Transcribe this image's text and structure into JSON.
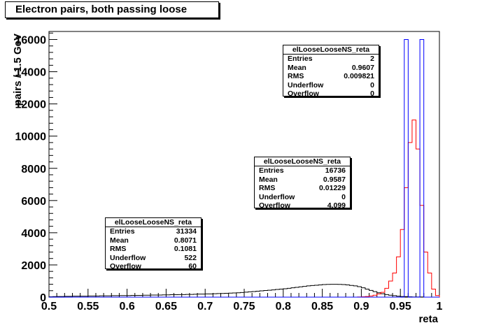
{
  "title": "Electron pairs, both passing loose",
  "chart_data": {
    "type": "bar",
    "xlabel": "reta",
    "ylabel": "pairs / 1.5 GeV",
    "xlim": [
      0.5,
      1.0
    ],
    "ylim": [
      0,
      16500
    ],
    "xticks": [
      "0.5",
      "0.55",
      "0.6",
      "0.65",
      "0.7",
      "0.75",
      "0.8",
      "0.85",
      "0.9",
      "0.95",
      "1"
    ],
    "yticks": [
      "0",
      "2000",
      "4000",
      "6000",
      "8000",
      "10000",
      "12000",
      "14000",
      "16000"
    ],
    "series": [
      {
        "name": "elLooseLooseNS_reta",
        "color": "#000000",
        "bin_width": 0.005,
        "x_start": 0.5,
        "values": [
          20,
          30,
          40,
          40,
          50,
          50,
          60,
          60,
          60,
          60,
          70,
          70,
          70,
          80,
          80,
          80,
          90,
          90,
          100,
          100,
          100,
          110,
          110,
          110,
          120,
          120,
          130,
          130,
          130,
          140,
          140,
          150,
          150,
          160,
          160,
          170,
          170,
          180,
          190,
          190,
          200,
          200,
          210,
          220,
          230,
          240,
          250,
          260,
          270,
          290,
          310,
          330,
          350,
          370,
          390,
          410,
          430,
          450,
          480,
          500,
          520,
          550,
          580,
          610,
          640,
          670,
          700,
          720,
          740,
          760,
          780,
          790,
          800,
          800,
          790,
          780,
          760,
          730,
          700,
          650,
          580,
          500,
          420,
          340,
          270,
          210,
          160,
          120,
          90,
          60,
          40,
          30,
          20,
          10,
          10,
          10,
          0,
          0,
          0,
          0
        ]
      },
      {
        "name": "elLooseLooseNS_reta",
        "color": "#ff0000",
        "bin_width": 0.005,
        "x_start": 0.5,
        "values": [
          0,
          0,
          0,
          0,
          0,
          0,
          0,
          0,
          0,
          0,
          0,
          0,
          0,
          0,
          0,
          0,
          0,
          0,
          0,
          0,
          0,
          0,
          0,
          0,
          0,
          0,
          0,
          0,
          0,
          0,
          0,
          0,
          0,
          0,
          0,
          0,
          0,
          0,
          0,
          0,
          0,
          0,
          0,
          0,
          0,
          0,
          0,
          0,
          0,
          0,
          0,
          0,
          0,
          0,
          0,
          0,
          0,
          0,
          0,
          0,
          0,
          0,
          0,
          0,
          0,
          0,
          0,
          0,
          0,
          0,
          0,
          0,
          0,
          0,
          0,
          0,
          0,
          0,
          0,
          10,
          20,
          40,
          70,
          120,
          200,
          300,
          550,
          1000,
          1500,
          2500,
          4200,
          6800,
          9600,
          11000,
          9200,
          5700,
          2800,
          1500,
          500,
          100
        ]
      },
      {
        "name": "elLooseLooseNS_reta",
        "color": "#0000ff",
        "bin_width": 0.005,
        "x_start": 0.5,
        "values": [
          0,
          0,
          0,
          0,
          0,
          0,
          0,
          0,
          0,
          0,
          0,
          0,
          0,
          0,
          0,
          0,
          0,
          0,
          0,
          0,
          0,
          0,
          0,
          0,
          0,
          0,
          0,
          0,
          0,
          0,
          0,
          0,
          0,
          0,
          0,
          0,
          0,
          0,
          0,
          0,
          0,
          0,
          0,
          0,
          0,
          0,
          0,
          0,
          0,
          0,
          0,
          0,
          0,
          0,
          0,
          0,
          0,
          0,
          0,
          0,
          0,
          0,
          0,
          0,
          0,
          0,
          0,
          0,
          0,
          0,
          0,
          0,
          0,
          0,
          0,
          0,
          0,
          0,
          0,
          0,
          0,
          0,
          0,
          0,
          0,
          0,
          0,
          0,
          0,
          0,
          0,
          16000,
          0,
          0,
          0,
          16000,
          0,
          0,
          0,
          0
        ]
      }
    ]
  },
  "stats": [
    {
      "title": "elLooseLooseNS_reta",
      "rows": [
        {
          "label": "Entries",
          "value": "31334"
        },
        {
          "label": "Mean",
          "value": "0.8071"
        },
        {
          "label": "RMS",
          "value": "0.1081"
        },
        {
          "label": "Underflow",
          "value": "522"
        },
        {
          "label": "Overflow",
          "value": "60"
        }
      ]
    },
    {
      "title": "elLooseLooseNS_reta",
      "rows": [
        {
          "label": "Entries",
          "value": "16736"
        },
        {
          "label": "Mean",
          "value": "0.9587"
        },
        {
          "label": "RMS",
          "value": "0.01229"
        },
        {
          "label": "Underflow",
          "value": "0"
        },
        {
          "label": "Overflow",
          "value": "4.099"
        }
      ]
    },
    {
      "title": "elLooseLooseNS_reta",
      "rows": [
        {
          "label": "Entries",
          "value": "2"
        },
        {
          "label": "Mean",
          "value": "0.9607"
        },
        {
          "label": "RMS",
          "value": "0.009821"
        },
        {
          "label": "Underflow",
          "value": "0"
        },
        {
          "label": "Overflow",
          "value": "0"
        }
      ]
    }
  ]
}
